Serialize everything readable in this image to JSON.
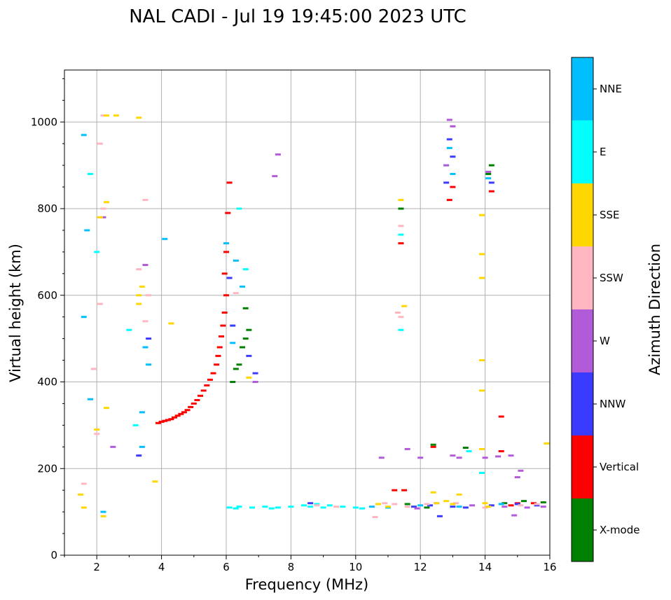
{
  "chart_data": {
    "type": "scatter",
    "title": "NAL CADI - Jul 19 19:45:00 2023 UTC",
    "xlabel": "Frequency (MHz)",
    "ylabel": "Virtual height (km)",
    "xlim": [
      1,
      16
    ],
    "ylim": [
      0,
      1120
    ],
    "xticks": [
      2,
      4,
      6,
      8,
      10,
      12,
      14,
      16
    ],
    "yticks": [
      0,
      200,
      400,
      600,
      800,
      1000
    ],
    "grid": true,
    "colorbar": {
      "label": "Azimuth Direction",
      "categories": [
        "X-mode",
        "Vertical",
        "NNW",
        "W",
        "SSW",
        "SSE",
        "E",
        "NNE"
      ],
      "colors": {
        "X-mode": "#008000",
        "Vertical": "#ff0000",
        "NNW": "#3b3bff",
        "W": "#b25bd8",
        "SSW": "#ffb6c1",
        "SSE": "#ffd700",
        "E": "#00ffff",
        "NNE": "#00bfff"
      }
    },
    "series": [
      {
        "name": "Vertical",
        "points": [
          [
            3.9,
            305
          ],
          [
            4.0,
            308
          ],
          [
            4.1,
            310
          ],
          [
            4.2,
            312
          ],
          [
            4.3,
            314
          ],
          [
            4.4,
            318
          ],
          [
            4.5,
            322
          ],
          [
            4.6,
            326
          ],
          [
            4.7,
            330
          ],
          [
            4.8,
            335
          ],
          [
            4.9,
            342
          ],
          [
            5.0,
            350
          ],
          [
            5.1,
            358
          ],
          [
            5.2,
            368
          ],
          [
            5.3,
            380
          ],
          [
            5.4,
            392
          ],
          [
            5.5,
            405
          ],
          [
            5.6,
            420
          ],
          [
            5.7,
            440
          ],
          [
            5.75,
            460
          ],
          [
            5.8,
            480
          ],
          [
            5.85,
            505
          ],
          [
            5.9,
            530
          ],
          [
            5.95,
            560
          ],
          [
            6.0,
            600
          ],
          [
            5.95,
            650
          ],
          [
            6.0,
            700
          ],
          [
            6.05,
            790
          ],
          [
            6.1,
            860
          ],
          [
            12.9,
            820
          ],
          [
            13.0,
            850
          ],
          [
            14.2,
            840
          ],
          [
            14.5,
            320
          ],
          [
            14.5,
            240
          ],
          [
            12.4,
            250
          ],
          [
            11.4,
            720
          ],
          [
            11.2,
            150
          ],
          [
            11.5,
            150
          ],
          [
            15.0,
            120
          ],
          [
            15.5,
            120
          ],
          [
            14.8,
            115
          ]
        ]
      },
      {
        "name": "X-mode",
        "points": [
          [
            6.2,
            400
          ],
          [
            6.3,
            430
          ],
          [
            6.4,
            440
          ],
          [
            6.5,
            480
          ],
          [
            6.6,
            500
          ],
          [
            6.7,
            520
          ],
          [
            6.6,
            570
          ],
          [
            12.4,
            255
          ],
          [
            13.4,
            248
          ],
          [
            14.2,
            900
          ],
          [
            14.1,
            880
          ],
          [
            14.6,
            120
          ],
          [
            15.2,
            125
          ],
          [
            15.8,
            122
          ],
          [
            11.4,
            800
          ],
          [
            12.2,
            110
          ],
          [
            11.6,
            118
          ]
        ]
      },
      {
        "name": "E",
        "points": [
          [
            6.1,
            110
          ],
          [
            6.4,
            112
          ],
          [
            6.8,
            110
          ],
          [
            7.2,
            112
          ],
          [
            7.6,
            110
          ],
          [
            8.0,
            112
          ],
          [
            8.4,
            115
          ],
          [
            8.8,
            118
          ],
          [
            9.2,
            115
          ],
          [
            9.6,
            112
          ],
          [
            10.0,
            110
          ],
          [
            10.2,
            108
          ],
          [
            7.4,
            108
          ],
          [
            8.6,
            112
          ],
          [
            9.0,
            110
          ],
          [
            6.3,
            108
          ],
          [
            13.9,
            190
          ],
          [
            11.4,
            520
          ],
          [
            11.4,
            740
          ],
          [
            6.6,
            660
          ],
          [
            6.4,
            800
          ],
          [
            2.0,
            700
          ],
          [
            1.8,
            880
          ],
          [
            3.0,
            520
          ],
          [
            3.2,
            300
          ],
          [
            13.5,
            240
          ],
          [
            12.8,
            900
          ]
        ]
      },
      {
        "name": "NNE",
        "points": [
          [
            1.6,
            970
          ],
          [
            1.7,
            750
          ],
          [
            1.6,
            550
          ],
          [
            1.8,
            360
          ],
          [
            3.5,
            480
          ],
          [
            3.6,
            440
          ],
          [
            3.4,
            330
          ],
          [
            6.3,
            680
          ],
          [
            6.5,
            620
          ],
          [
            6.2,
            490
          ],
          [
            12.9,
            940
          ],
          [
            13.0,
            880
          ],
          [
            14.1,
            870
          ],
          [
            10.5,
            112
          ],
          [
            11.0,
            110
          ],
          [
            12.0,
            115
          ],
          [
            13.2,
            112
          ],
          [
            14.5,
            118
          ],
          [
            6.0,
            720
          ],
          [
            3.4,
            250
          ],
          [
            2.2,
            100
          ],
          [
            4.1,
            730
          ]
        ]
      },
      {
        "name": "NNW",
        "points": [
          [
            12.9,
            960
          ],
          [
            13.0,
            920
          ],
          [
            12.8,
            860
          ],
          [
            14.2,
            860
          ],
          [
            6.1,
            640
          ],
          [
            6.2,
            530
          ],
          [
            6.7,
            460
          ],
          [
            12.6,
            90
          ],
          [
            13.0,
            112
          ],
          [
            14.2,
            115
          ],
          [
            15.0,
            118
          ],
          [
            15.6,
            115
          ],
          [
            11.8,
            112
          ],
          [
            12.3,
            115
          ],
          [
            13.4,
            110
          ],
          [
            6.9,
            420
          ],
          [
            3.6,
            500
          ],
          [
            3.3,
            230
          ],
          [
            8.6,
            120
          ]
        ]
      },
      {
        "name": "W",
        "points": [
          [
            12.9,
            1005
          ],
          [
            13.0,
            990
          ],
          [
            12.8,
            900
          ],
          [
            14.1,
            885
          ],
          [
            7.6,
            925
          ],
          [
            7.5,
            875
          ],
          [
            13.2,
            225
          ],
          [
            13.0,
            230
          ],
          [
            14.0,
            225
          ],
          [
            14.4,
            228
          ],
          [
            14.8,
            230
          ],
          [
            15.1,
            195
          ],
          [
            15.0,
            180
          ],
          [
            14.9,
            92
          ],
          [
            15.3,
            110
          ],
          [
            15.8,
            112
          ],
          [
            12.0,
            225
          ],
          [
            11.6,
            245
          ],
          [
            10.8,
            225
          ],
          [
            6.9,
            400
          ],
          [
            3.5,
            670
          ],
          [
            2.2,
            780
          ],
          [
            2.5,
            250
          ],
          [
            11.9,
            108
          ],
          [
            12.5,
            120
          ],
          [
            13.6,
            115
          ],
          [
            14.6,
            112
          ]
        ]
      },
      {
        "name": "SSW",
        "points": [
          [
            2.2,
            1015
          ],
          [
            2.1,
            950
          ],
          [
            2.2,
            800
          ],
          [
            3.5,
            820
          ],
          [
            3.6,
            600
          ],
          [
            3.5,
            540
          ],
          [
            3.3,
            660
          ],
          [
            2.1,
            580
          ],
          [
            1.9,
            430
          ],
          [
            1.6,
            165
          ],
          [
            2.0,
            280
          ],
          [
            11.4,
            760
          ],
          [
            11.4,
            550
          ],
          [
            11.3,
            560
          ],
          [
            10.6,
            88
          ],
          [
            10.9,
            120
          ],
          [
            11.2,
            118
          ],
          [
            11.6,
            112
          ],
          [
            12.2,
            118
          ],
          [
            13.1,
            120
          ],
          [
            14.0,
            110
          ],
          [
            15.1,
            115
          ],
          [
            15.6,
            118
          ],
          [
            6.3,
            605
          ],
          [
            8.8,
            115
          ],
          [
            9.4,
            112
          ]
        ]
      },
      {
        "name": "SSE",
        "points": [
          [
            2.3,
            1015
          ],
          [
            3.3,
            1010
          ],
          [
            2.3,
            815
          ],
          [
            2.1,
            780
          ],
          [
            3.3,
            600
          ],
          [
            3.3,
            580
          ],
          [
            3.4,
            620
          ],
          [
            2.3,
            340
          ],
          [
            2.0,
            290
          ],
          [
            1.5,
            140
          ],
          [
            1.6,
            110
          ],
          [
            2.2,
            90
          ],
          [
            4.3,
            535
          ],
          [
            11.4,
            820
          ],
          [
            11.5,
            575
          ],
          [
            12.4,
            145
          ],
          [
            12.5,
            120
          ],
          [
            12.8,
            125
          ],
          [
            13.0,
            118
          ],
          [
            13.2,
            140
          ],
          [
            13.9,
            785
          ],
          [
            13.9,
            695
          ],
          [
            13.9,
            640
          ],
          [
            13.9,
            450
          ],
          [
            13.9,
            380
          ],
          [
            13.9,
            245
          ],
          [
            14.0,
            120
          ],
          [
            14.1,
            112
          ],
          [
            15.9,
            258
          ],
          [
            3.8,
            170
          ],
          [
            6.7,
            410
          ],
          [
            2.6,
            1015
          ],
          [
            10.7,
            118
          ],
          [
            11.0,
            112
          ]
        ]
      }
    ]
  }
}
